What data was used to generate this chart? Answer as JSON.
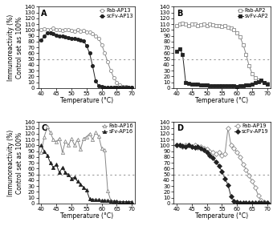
{
  "panels": [
    {
      "label": "A",
      "open_label": "Fab-AP13",
      "solid_label": "scFv-AP13",
      "open_marker": "o",
      "solid_marker": "o",
      "open_filled": false,
      "solid_filled": true,
      "open_x": [
        40,
        41,
        42,
        43,
        44,
        45,
        46,
        47,
        48,
        49,
        50,
        51,
        52,
        53,
        54,
        55,
        56,
        57,
        58,
        59,
        60,
        61,
        62,
        63,
        64,
        65,
        66,
        67,
        68,
        69,
        70
      ],
      "open_y": [
        100,
        102,
        101,
        100,
        103,
        101,
        100,
        99,
        101,
        100,
        99,
        98,
        100,
        98,
        99,
        97,
        96,
        94,
        90,
        85,
        75,
        60,
        45,
        30,
        18,
        10,
        5,
        3,
        2,
        1,
        1
      ],
      "solid_x": [
        40,
        41,
        42,
        43,
        44,
        45,
        46,
        47,
        48,
        49,
        50,
        51,
        52,
        53,
        54,
        55,
        56,
        57,
        58,
        59,
        60,
        61,
        62,
        63,
        64,
        65,
        66,
        67,
        68,
        69,
        70
      ],
      "solid_y": [
        82,
        90,
        95,
        95,
        93,
        91,
        90,
        89,
        88,
        87,
        86,
        85,
        84,
        83,
        81,
        73,
        60,
        38,
        12,
        4,
        2,
        1,
        1,
        1,
        1,
        1,
        1,
        1,
        1,
        1,
        1
      ]
    },
    {
      "label": "B",
      "open_label": "Fab-AP2",
      "solid_label": "svFv-AP2",
      "open_marker": "s",
      "solid_marker": "s",
      "open_filled": false,
      "solid_filled": true,
      "open_x": [
        40,
        41,
        42,
        43,
        44,
        45,
        46,
        47,
        48,
        49,
        50,
        51,
        52,
        53,
        54,
        55,
        56,
        57,
        58,
        59,
        60,
        61,
        62,
        63,
        64,
        65,
        66,
        67,
        68,
        69,
        70
      ],
      "open_y": [
        108,
        110,
        112,
        110,
        108,
        110,
        110,
        108,
        109,
        110,
        108,
        110,
        109,
        107,
        108,
        106,
        108,
        105,
        103,
        100,
        95,
        88,
        75,
        58,
        38,
        25,
        18,
        14,
        12,
        10,
        8
      ],
      "solid_x": [
        40,
        41,
        42,
        43,
        44,
        45,
        46,
        47,
        48,
        49,
        50,
        51,
        52,
        53,
        54,
        55,
        56,
        57,
        58,
        59,
        60,
        61,
        62,
        63,
        64,
        65,
        66,
        67,
        68,
        69,
        70
      ],
      "solid_y": [
        63,
        68,
        58,
        10,
        8,
        7,
        6,
        6,
        5,
        5,
        5,
        4,
        4,
        4,
        4,
        4,
        4,
        4,
        4,
        4,
        3,
        4,
        4,
        5,
        5,
        6,
        9,
        11,
        13,
        10,
        7
      ]
    },
    {
      "label": "C",
      "open_label": "Fab-AP16",
      "solid_label": "sFv-AP16",
      "open_marker": "^",
      "solid_marker": "^",
      "open_filled": false,
      "solid_filled": true,
      "open_x": [
        40,
        41,
        42,
        43,
        44,
        45,
        46,
        47,
        48,
        49,
        50,
        51,
        52,
        53,
        54,
        55,
        56,
        57,
        58,
        59,
        60,
        61,
        62,
        63,
        64,
        65,
        66,
        67,
        68,
        69,
        70
      ],
      "open_y": [
        88,
        115,
        132,
        122,
        110,
        106,
        112,
        88,
        107,
        100,
        112,
        100,
        110,
        93,
        112,
        115,
        120,
        110,
        122,
        116,
        95,
        92,
        22,
        5,
        3,
        3,
        2,
        2,
        2,
        2,
        2
      ],
      "solid_x": [
        40,
        41,
        42,
        43,
        44,
        45,
        46,
        47,
        48,
        49,
        50,
        51,
        52,
        53,
        54,
        55,
        56,
        57,
        58,
        59,
        60,
        61,
        62,
        63,
        64,
        65,
        66,
        67,
        68,
        69,
        70
      ],
      "solid_y": [
        100,
        90,
        83,
        70,
        62,
        67,
        53,
        62,
        53,
        50,
        43,
        45,
        38,
        33,
        28,
        23,
        8,
        7,
        6,
        6,
        5,
        5,
        5,
        4,
        4,
        4,
        3,
        3,
        3,
        3,
        3
      ]
    },
    {
      "label": "D",
      "open_label": "Fab-AP19",
      "solid_label": "scFv-AP19",
      "open_marker": "D",
      "solid_marker": "D",
      "open_filled": false,
      "solid_filled": true,
      "open_x": [
        40,
        41,
        42,
        43,
        44,
        45,
        46,
        47,
        48,
        49,
        50,
        51,
        52,
        53,
        54,
        55,
        56,
        57,
        58,
        59,
        60,
        61,
        62,
        63,
        64,
        65,
        66,
        67,
        68,
        69,
        70
      ],
      "open_y": [
        100,
        100,
        98,
        100,
        100,
        98,
        100,
        96,
        98,
        95,
        93,
        90,
        88,
        85,
        88,
        83,
        85,
        130,
        100,
        95,
        88,
        80,
        68,
        58,
        48,
        38,
        28,
        14,
        5,
        2,
        1
      ],
      "solid_x": [
        40,
        41,
        42,
        43,
        44,
        45,
        46,
        47,
        48,
        49,
        50,
        51,
        52,
        53,
        54,
        55,
        56,
        57,
        58,
        59,
        60,
        61,
        62,
        63,
        64,
        65,
        66,
        67,
        68,
        69,
        70
      ],
      "solid_y": [
        100,
        100,
        99,
        98,
        100,
        98,
        97,
        98,
        95,
        92,
        88,
        83,
        78,
        72,
        65,
        55,
        43,
        32,
        12,
        4,
        2,
        1,
        1,
        1,
        1,
        1,
        1,
        1,
        1,
        1,
        1
      ]
    }
  ],
  "xlim": [
    39,
    71
  ],
  "ylim": [
    0,
    140
  ],
  "xticks": [
    40,
    45,
    50,
    55,
    60,
    65,
    70
  ],
  "yticks": [
    0,
    10,
    20,
    30,
    40,
    50,
    60,
    70,
    80,
    90,
    100,
    110,
    120,
    130,
    140
  ],
  "xlabel": "Temperature (°C)",
  "ylabel": "Immunoreactivity (%)\nControl set as 100%",
  "hline_y": 50,
  "hline_color": "#999999",
  "open_color": "#888888",
  "solid_color": "#222222",
  "markersize": 3.0,
  "linewidth": 0.7,
  "tick_fontsize": 5,
  "label_fontsize": 5.5,
  "legend_fontsize": 4.8
}
